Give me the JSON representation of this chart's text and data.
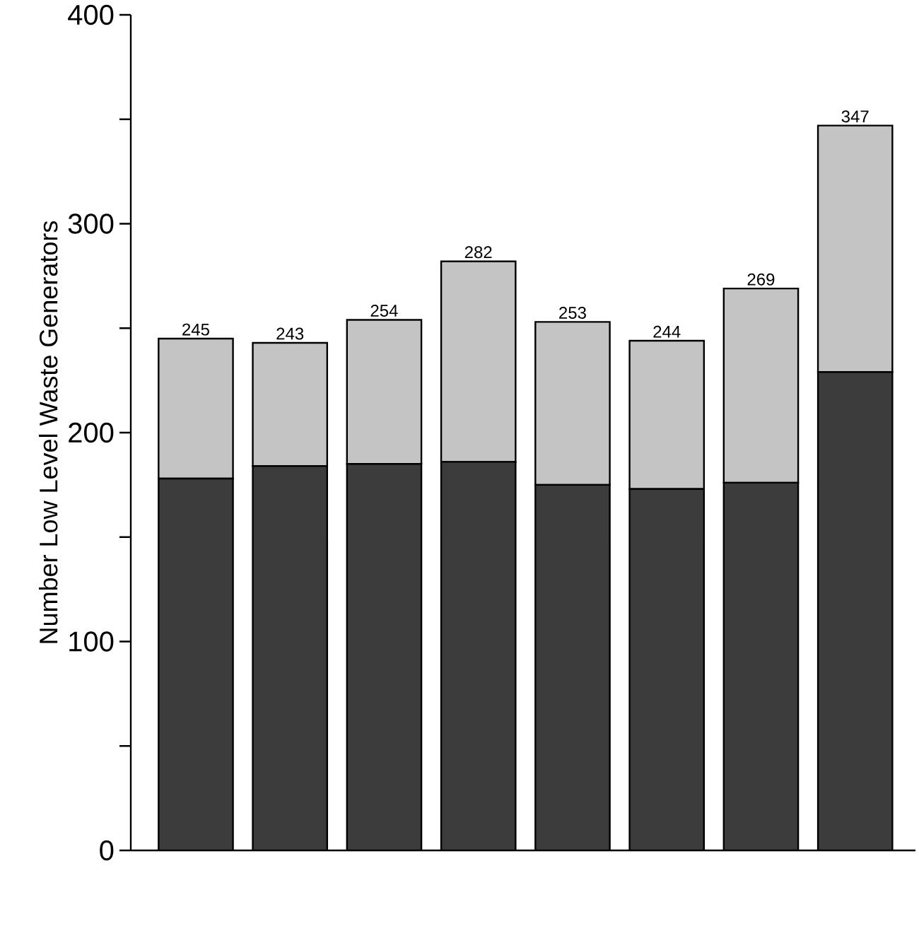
{
  "chart_data": {
    "type": "bar",
    "stacked": true,
    "ylabel": "Number Low Level Waste Generators",
    "categories": [
      null,
      null,
      null,
      null,
      null,
      null,
      null,
      null
    ],
    "series": [
      {
        "color": "#3c3c3c",
        "values": [
          178,
          184,
          185,
          186,
          175,
          173,
          176,
          229
        ]
      },
      {
        "color": "#c4c4c4",
        "values": [
          67,
          59,
          69,
          96,
          78,
          71,
          93,
          118
        ]
      }
    ],
    "totals": [
      "245",
      "243",
      "254",
      "282",
      "253",
      "244",
      "269",
      "347"
    ],
    "ylim": [
      0,
      400
    ],
    "yticks": [
      0,
      {
        "value": 50,
        "label": null
      },
      100,
      {
        "value": 150,
        "label": null
      },
      200,
      {
        "value": 250,
        "label": null
      },
      300,
      {
        "value": 350,
        "label": null
      },
      400
    ],
    "tick_labels": "y"
  }
}
